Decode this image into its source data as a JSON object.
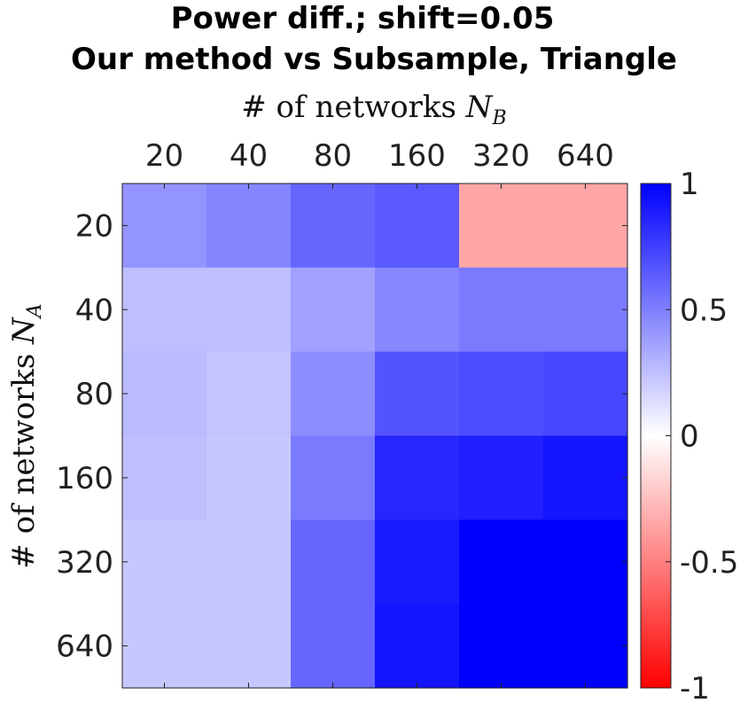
{
  "chart_data": {
    "type": "heatmap",
    "title_line1": "Power diff.; shift=0.05",
    "title_line2": "Our method vs Subsample, Triangle",
    "xlabel_prefix": "# of networks",
    "xlabel_var": "N",
    "xlabel_sub": "B",
    "ylabel_prefix": "# of networks",
    "ylabel_var": "N",
    "ylabel_sub": "A",
    "x_categories": [
      "20",
      "40",
      "80",
      "160",
      "320",
      "640"
    ],
    "y_categories": [
      "20",
      "40",
      "80",
      "160",
      "320",
      "640"
    ],
    "x_axis_position": "top",
    "values": [
      [
        0.42,
        0.48,
        0.6,
        0.65,
        -0.35,
        -0.35
      ],
      [
        0.25,
        0.25,
        0.37,
        0.47,
        0.52,
        0.52
      ],
      [
        0.27,
        0.23,
        0.45,
        0.67,
        0.7,
        0.72
      ],
      [
        0.25,
        0.22,
        0.52,
        0.85,
        0.88,
        0.92
      ],
      [
        0.22,
        0.22,
        0.6,
        0.9,
        1.0,
        1.0
      ],
      [
        0.22,
        0.22,
        0.6,
        0.92,
        1.0,
        1.0
      ]
    ],
    "colorbar": {
      "min": -1,
      "max": 1,
      "ticks": [
        "1",
        "0.5",
        "0",
        "-0.5",
        "-1"
      ],
      "tick_values": [
        1,
        0.5,
        0,
        -0.5,
        -1
      ],
      "colors": {
        "negative": "#ff0000",
        "zero": "#ffffff",
        "positive": "#0000ff"
      }
    },
    "grid": false
  }
}
